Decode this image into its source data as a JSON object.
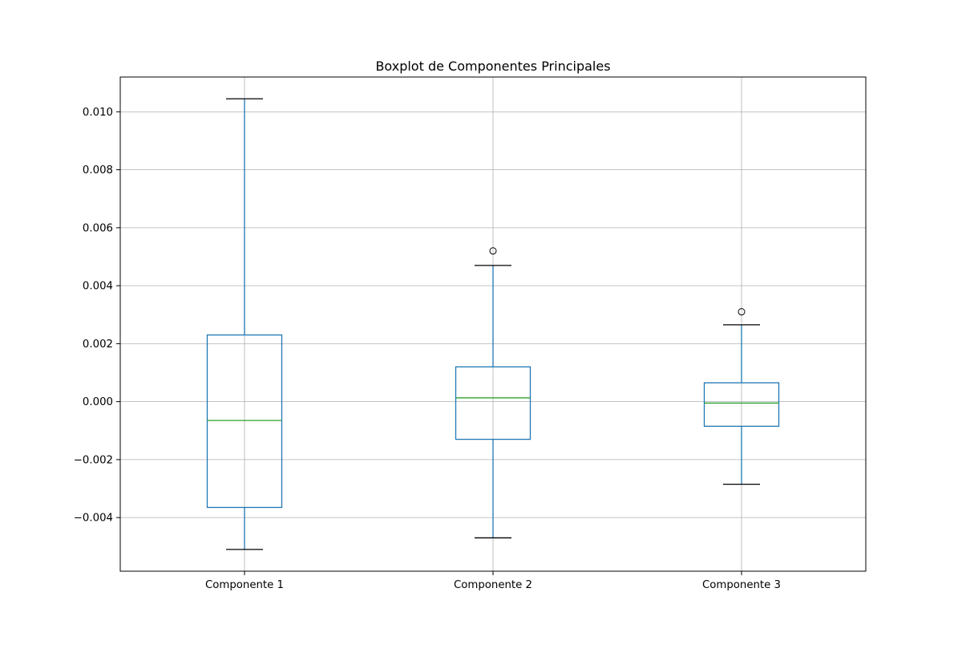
{
  "chart_data": {
    "type": "boxplot",
    "title": "Boxplot de Componentes Principales",
    "xlabel": "",
    "ylabel": "",
    "grid": true,
    "ylim": [
      -0.00585,
      0.0112
    ],
    "yticks": [
      -0.004,
      -0.002,
      0.0,
      0.002,
      0.004,
      0.006,
      0.008,
      0.01
    ],
    "ytick_labels": [
      "−0.004",
      "−0.002",
      "0.000",
      "0.002",
      "0.004",
      "0.006",
      "0.008",
      "0.010"
    ],
    "categories": [
      "Componente 1",
      "Componente 2",
      "Componente 3"
    ],
    "boxes": [
      {
        "label": "Componente 1",
        "whisker_low": -0.0051,
        "q1": -0.00365,
        "median": -0.00065,
        "q3": 0.0023,
        "whisker_high": 0.01045,
        "outliers": []
      },
      {
        "label": "Componente 2",
        "whisker_low": -0.0047,
        "q1": -0.0013,
        "median": 0.00013,
        "q3": 0.0012,
        "whisker_high": 0.0047,
        "outliers": [
          0.0052
        ]
      },
      {
        "label": "Componente 3",
        "whisker_low": -0.00285,
        "q1": -0.00085,
        "median": -5e-05,
        "q3": 0.00065,
        "whisker_high": 0.00265,
        "outliers": [
          0.0031
        ]
      }
    ],
    "colors": {
      "box": "#1f77b4",
      "median": "#2ca02c",
      "cap": "#000000",
      "grid": "#b0b0b0",
      "axes": "#000000",
      "flier": "#000000"
    }
  }
}
